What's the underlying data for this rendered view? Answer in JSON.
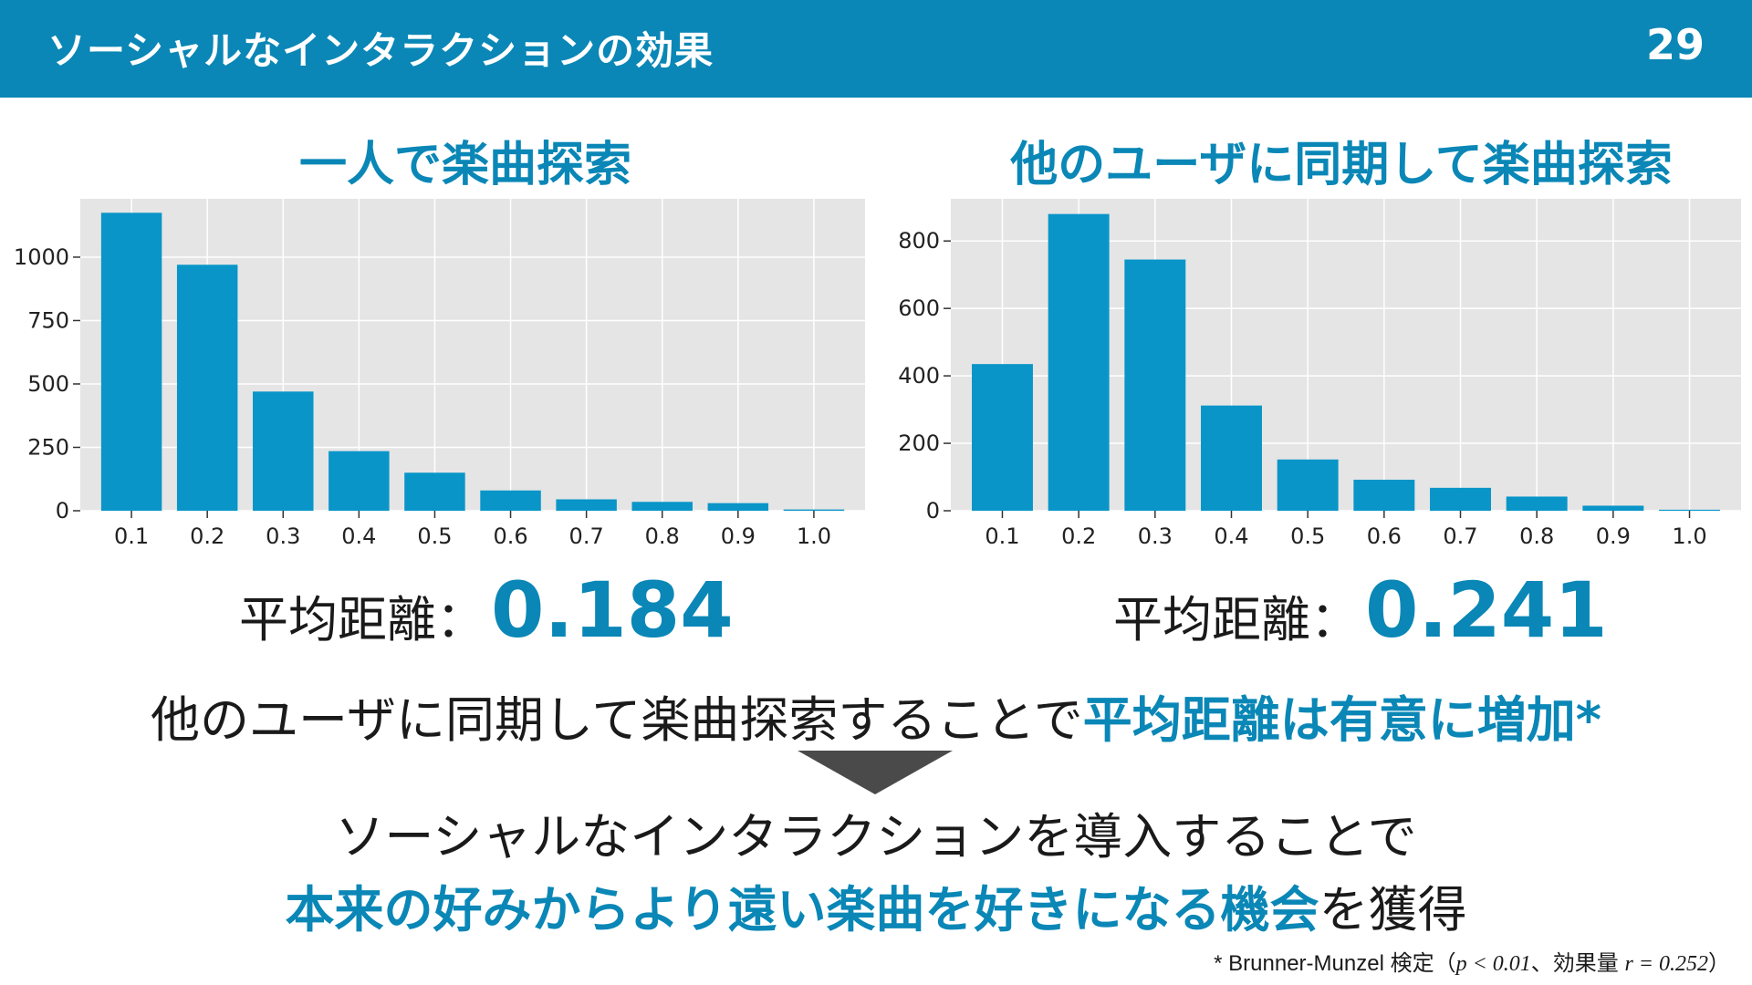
{
  "header": {
    "title": "ソーシャルなインタラクションの効果",
    "page_number": "29"
  },
  "colors": {
    "accent": "#0a87b6",
    "bar": "#0995c8",
    "plot_background": "#e5e5e5",
    "arrow": "#4a4a4a"
  },
  "charts": {
    "left": {
      "title": "一人で楽曲探索",
      "mean_label": "平均距離：",
      "mean_value": "0.184"
    },
    "right": {
      "title": "他のユーザに同期して楽曲探索",
      "mean_label": "平均距離：",
      "mean_value": "0.241"
    }
  },
  "chart_data": [
    {
      "type": "bar",
      "title": "一人で楽曲探索",
      "categories": [
        "0.1",
        "0.2",
        "0.3",
        "0.4",
        "0.5",
        "0.6",
        "0.7",
        "0.8",
        "0.9",
        "1.0"
      ],
      "values": [
        1175,
        970,
        470,
        235,
        150,
        80,
        45,
        35,
        30,
        5
      ],
      "yticks": [
        0,
        250,
        500,
        750,
        1000
      ],
      "ylim": [
        0,
        1230
      ],
      "grid": true,
      "xlabel": "",
      "ylabel": ""
    },
    {
      "type": "bar",
      "title": "他のユーザに同期して楽曲探索",
      "categories": [
        "0.1",
        "0.2",
        "0.3",
        "0.4",
        "0.5",
        "0.6",
        "0.7",
        "0.8",
        "0.9",
        "1.0"
      ],
      "values": [
        435,
        880,
        745,
        312,
        152,
        92,
        68,
        42,
        15,
        3
      ],
      "yticks": [
        0,
        200,
        400,
        600,
        800
      ],
      "ylim": [
        0,
        925
      ],
      "grid": true,
      "xlabel": "",
      "ylabel": ""
    }
  ],
  "statement": {
    "prefix": "他のユーザに同期して楽曲探索することで",
    "highlight": "平均距離は有意に増加*"
  },
  "conclusion": {
    "line1": "ソーシャルなインタラクションを導入することで",
    "line2_highlight": "本来の好みからより遠い楽曲を好きになる機会",
    "line2_suffix": "を獲得"
  },
  "footnote": {
    "prefix": "* Brunner-Munzel 検定（",
    "p_expr": "p < 0.01",
    "middle": "、効果量 ",
    "r_expr": "r = 0.252",
    "suffix": "）"
  }
}
